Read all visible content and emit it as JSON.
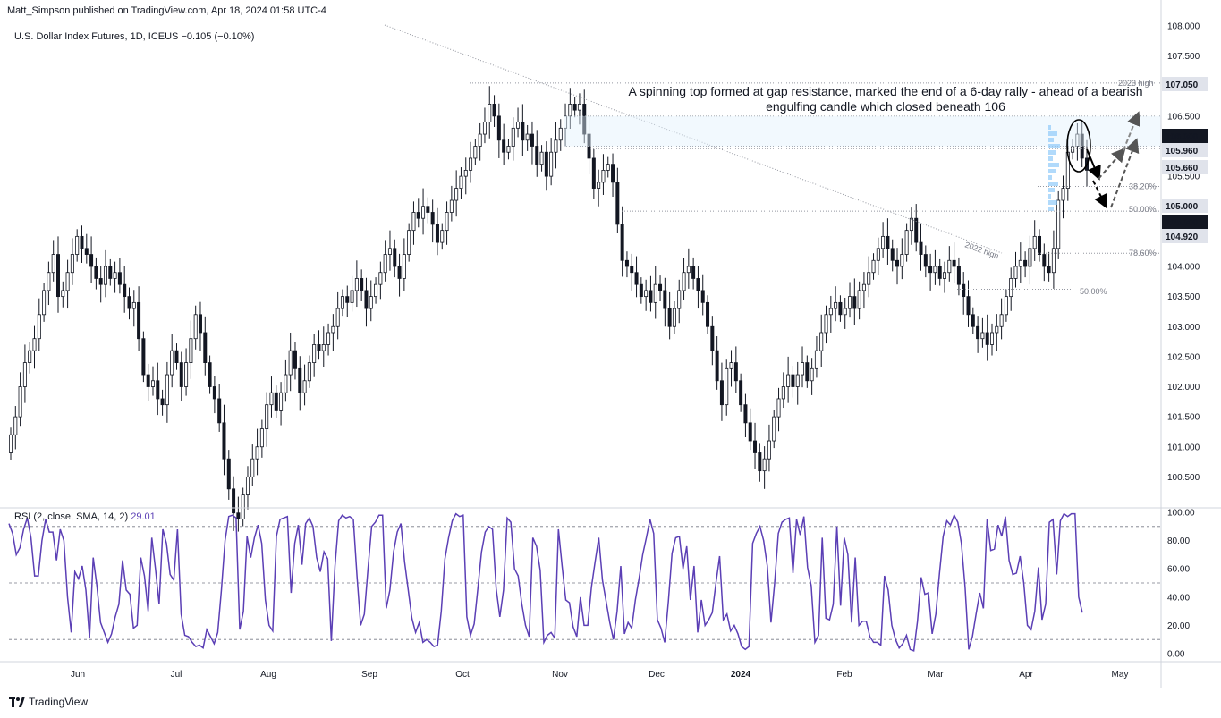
{
  "publisher": "Matt_Simpson published on TradingView.com, Apr 18, 2024 01:58 UTC-4",
  "legend": {
    "symbol": "U.S. Dollar Index Futures, 1D, ICEUS",
    "change": "−0.105 (−0.10%)"
  },
  "annotation": "A spinning top formed at gap resistance, marked the end of a 6-day rally - ahead of a bearish engulfing candle which closed beneath 106",
  "rsi_legend": {
    "label": "RSI (2, close, SMA, 14, 2)",
    "value": "29.01"
  },
  "footer": {
    "brand": "TradingView"
  },
  "colors": {
    "rsi_line": "#5b3fb5",
    "candle": "#131722",
    "accent_black": "#000000",
    "grid_dotted": "#9598a1"
  },
  "icons": [
    "tradingview-logo-icon"
  ],
  "chart_data": [
    {
      "type": "candlestick",
      "title": "U.S. Dollar Index Futures, 1D, ICEUS",
      "x_tick_labels": [
        "Jun",
        "Jul",
        "Aug",
        "Sep",
        "Oct",
        "Nov",
        "Dec",
        "2024",
        "Feb",
        "Mar",
        "Apr",
        "May"
      ],
      "y_tick_labels": [
        "108.000",
        "107.500",
        "107.000",
        "106.500",
        "106.000",
        "105.500",
        "105.000",
        "104.500",
        "104.000",
        "103.500",
        "103.000",
        "102.500",
        "102.000",
        "101.500",
        "101.000",
        "100.500"
      ],
      "ylim": [
        100.0,
        108.0
      ],
      "close_series": [
        101.2,
        101.5,
        102.0,
        102.4,
        102.6,
        102.8,
        103.2,
        103.6,
        103.9,
        104.2,
        103.5,
        103.6,
        103.9,
        104.2,
        104.5,
        104.3,
        104.2,
        104.0,
        103.8,
        103.7,
        104.0,
        103.8,
        103.9,
        103.7,
        103.5,
        103.3,
        103.4,
        102.8,
        102.2,
        102.0,
        102.1,
        101.8,
        101.7,
        102.2,
        102.6,
        102.4,
        102.0,
        102.4,
        102.8,
        103.2,
        102.9,
        102.4,
        102.0,
        101.8,
        101.4,
        100.8,
        100.3,
        99.9,
        99.8,
        100.2,
        100.5,
        100.8,
        101.0,
        101.3,
        101.7,
        101.9,
        101.6,
        101.9,
        102.2,
        102.6,
        102.3,
        101.9,
        102.1,
        102.4,
        102.7,
        102.6,
        102.7,
        102.9,
        103.0,
        103.3,
        103.5,
        103.4,
        103.6,
        103.8,
        103.6,
        103.3,
        103.5,
        103.7,
        103.9,
        104.2,
        104.3,
        104.0,
        103.8,
        104.2,
        104.6,
        104.9,
        104.8,
        105.0,
        104.9,
        104.7,
        104.4,
        104.6,
        104.9,
        105.1,
        105.3,
        105.5,
        105.6,
        105.8,
        106.0,
        106.2,
        106.4,
        106.7,
        106.5,
        106.1,
        105.9,
        106.0,
        106.3,
        106.4,
        106.1,
        106.2,
        106.0,
        105.7,
        105.9,
        105.5,
        105.9,
        106.1,
        106.3,
        106.5,
        106.7,
        106.6,
        106.7,
        106.2,
        105.8,
        105.3,
        105.4,
        105.6,
        105.7,
        105.4,
        104.7,
        104.1,
        104.0,
        103.9,
        103.7,
        103.5,
        103.6,
        103.4,
        103.7,
        103.6,
        103.3,
        103.0,
        103.3,
        103.6,
        103.9,
        104.0,
        103.8,
        103.6,
        103.4,
        103.0,
        102.6,
        102.1,
        101.7,
        102.3,
        102.4,
        102.1,
        101.7,
        101.4,
        101.1,
        100.9,
        100.6,
        100.8,
        101.1,
        101.5,
        101.8,
        102.0,
        102.2,
        102.0,
        102.2,
        102.4,
        102.1,
        102.3,
        102.6,
        102.9,
        103.2,
        103.3,
        103.4,
        103.2,
        103.3,
        103.5,
        103.3,
        103.6,
        103.7,
        103.9,
        104.1,
        104.3,
        104.5,
        104.3,
        104.1,
        104.0,
        104.2,
        104.6,
        104.8,
        104.4,
        104.2,
        104.0,
        103.9,
        104.0,
        103.8,
        103.9,
        104.1,
        104.0,
        103.7,
        103.5,
        103.2,
        103.0,
        102.8,
        102.9,
        102.7,
        102.9,
        103.0,
        103.2,
        103.5,
        103.8,
        104.0,
        104.1,
        104.0,
        104.3,
        104.5,
        104.2,
        104.0,
        103.9,
        104.3,
        105.1,
        105.3,
        105.9,
        106.0,
        106.2,
        105.8,
        105.6
      ],
      "price_labels": [
        {
          "price": 107.05,
          "note": "2023 high",
          "text": "107.050"
        },
        {
          "price": 106.0,
          "text": "106.000"
        },
        {
          "price": 105.96,
          "text": "105.960"
        },
        {
          "price": 105.66,
          "text": "105.660"
        },
        {
          "price": 105.0,
          "text": "105.000"
        },
        {
          "price": 105.0,
          "text": "105.000"
        },
        {
          "price": 104.92,
          "text": "104.920"
        }
      ],
      "fib_labels": [
        "38.20%",
        "50.00%",
        "78.60%",
        "50.00%"
      ],
      "line_labels": [
        "2022 high",
        "2023 high"
      ]
    },
    {
      "type": "line",
      "title": "RSI (2, close, SMA, 14, 2)",
      "y_tick_labels": [
        "100.00",
        "80.00",
        "60.00",
        "40.00",
        "20.00",
        "0.00"
      ],
      "ylim": [
        0,
        100
      ],
      "reference_levels": [
        90,
        50,
        10
      ],
      "last_value": 29.01,
      "values": [
        92,
        85,
        70,
        75,
        88,
        96,
        82,
        55,
        55,
        80,
        95,
        86,
        86,
        66,
        88,
        80,
        40,
        15,
        58,
        53,
        62,
        45,
        11,
        68,
        48,
        22,
        15,
        8,
        14,
        26,
        35,
        66,
        45,
        42,
        18,
        20,
        68,
        55,
        30,
        82,
        60,
        35,
        88,
        78,
        56,
        52,
        88,
        28,
        13,
        12,
        8,
        5,
        6,
        4,
        17,
        12,
        7,
        15,
        45,
        80,
        97,
        98,
        96,
        17,
        30,
        83,
        68,
        82,
        91,
        78,
        38,
        20,
        16,
        83,
        95,
        96,
        97,
        43,
        78,
        91,
        63,
        92,
        96,
        90,
        68,
        58,
        72,
        67,
        9,
        62,
        94,
        98,
        96,
        97,
        95,
        55,
        20,
        28,
        60,
        90,
        93,
        98,
        98,
        32,
        45,
        72,
        86,
        92,
        65,
        45,
        25,
        15,
        22,
        8,
        10,
        8,
        5,
        6,
        30,
        67,
        82,
        94,
        99,
        97,
        98,
        26,
        13,
        21,
        46,
        72,
        86,
        90,
        88,
        46,
        26,
        45,
        96,
        93,
        60,
        55,
        35,
        20,
        12,
        82,
        76,
        59,
        8,
        13,
        15,
        11,
        88,
        62,
        38,
        36,
        19,
        12,
        40,
        20,
        20,
        47,
        65,
        82,
        52,
        37,
        22,
        10,
        30,
        62,
        14,
        22,
        18,
        38,
        53,
        70,
        82,
        95,
        85,
        24,
        18,
        8,
        37,
        71,
        82,
        83,
        60,
        76,
        38,
        62,
        15,
        38,
        20,
        24,
        29,
        50,
        69,
        24,
        28,
        16,
        20,
        14,
        5,
        3,
        5,
        78,
        85,
        90,
        80,
        62,
        22,
        50,
        85,
        93,
        95,
        96,
        57,
        95,
        84,
        97,
        61,
        48,
        8,
        13,
        82,
        25,
        24,
        35,
        90,
        34,
        82,
        70,
        22,
        68,
        20,
        23,
        23,
        12,
        8,
        8,
        6,
        55,
        45,
        20,
        10,
        4,
        7,
        13,
        3,
        2,
        23,
        54,
        42,
        43,
        14,
        28,
        57,
        83,
        94,
        91,
        98,
        93,
        78,
        47,
        3,
        12,
        28,
        43,
        32,
        95,
        73,
        74,
        91,
        83,
        97,
        66,
        56,
        57,
        69,
        50,
        20,
        17,
        30,
        61,
        24,
        35,
        93,
        95,
        56,
        94,
        99,
        97,
        99,
        99,
        40,
        29
      ]
    }
  ]
}
